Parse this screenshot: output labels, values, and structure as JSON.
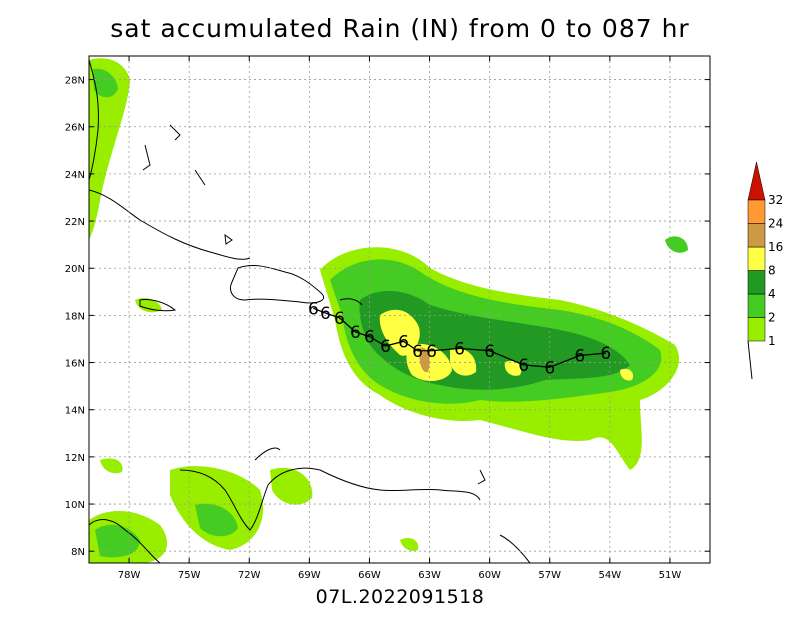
{
  "title": "sat accumulated Rain (IN) from 0 to 087 hr",
  "subtitle": "07L.2022091518",
  "map": {
    "lat_labels": [
      "28N",
      "26N",
      "24N",
      "22N",
      "20N",
      "18N",
      "16N",
      "14N",
      "12N",
      "10N",
      "8N"
    ],
    "lon_labels": [
      "78W",
      "75W",
      "72W",
      "69W",
      "66W",
      "63W",
      "60W",
      "57W",
      "54W",
      "51W"
    ],
    "lat_range": [
      7.5,
      29.0
    ],
    "lon_range": [
      -80.0,
      -49.0
    ],
    "grid": "dotted"
  },
  "colorbar": {
    "levels": [
      "1",
      "2",
      "4",
      "8",
      "16",
      "24",
      "32"
    ],
    "colors": [
      "#99ee00",
      "#44cc22",
      "#229922",
      "#ffff44",
      "#cc9944",
      "#ff9933",
      "#cc1100"
    ]
  },
  "storm_track": {
    "symbol": "6",
    "points": [
      {
        "lon": -68.8,
        "lat": 18.3
      },
      {
        "lon": -68.2,
        "lat": 18.1
      },
      {
        "lon": -67.5,
        "lat": 17.9
      },
      {
        "lon": -66.7,
        "lat": 17.3
      },
      {
        "lon": -66.0,
        "lat": 17.1
      },
      {
        "lon": -65.2,
        "lat": 16.7
      },
      {
        "lon": -64.3,
        "lat": 16.9
      },
      {
        "lon": -63.6,
        "lat": 16.5
      },
      {
        "lon": -62.9,
        "lat": 16.5
      },
      {
        "lon": -61.5,
        "lat": 16.6
      },
      {
        "lon": -60.0,
        "lat": 16.5
      },
      {
        "lon": -58.3,
        "lat": 15.9
      },
      {
        "lon": -57.0,
        "lat": 15.8
      },
      {
        "lon": -55.5,
        "lat": 16.3
      },
      {
        "lon": -54.2,
        "lat": 16.4
      }
    ]
  }
}
